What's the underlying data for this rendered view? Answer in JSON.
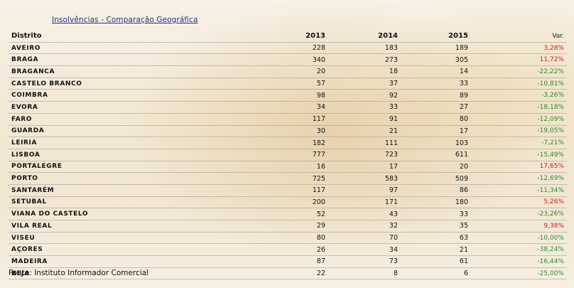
{
  "title": "Insolvências - Comparação Geográfica",
  "headers": {
    "district": "Distrito",
    "y2013": "2013",
    "y2014": "2014",
    "y2015": "2015",
    "var": "Var."
  },
  "rows": [
    {
      "district": "AVEIRO",
      "y2013": "228",
      "y2014": "183",
      "y2015": "189",
      "var": "3,28%",
      "trend": "pos"
    },
    {
      "district": "BRAGA",
      "y2013": "340",
      "y2014": "273",
      "y2015": "305",
      "var": "11,72%",
      "trend": "pos"
    },
    {
      "district": "BRAGANCA",
      "y2013": "20",
      "y2014": "18",
      "y2015": "14",
      "var": "-22,22%",
      "trend": "neg"
    },
    {
      "district": "CASTELO BRANCO",
      "y2013": "57",
      "y2014": "37",
      "y2015": "33",
      "var": "-10,81%",
      "trend": "neg"
    },
    {
      "district": "COIMBRA",
      "y2013": "98",
      "y2014": "92",
      "y2015": "89",
      "var": "-3,26%",
      "trend": "neg"
    },
    {
      "district": "EVORA",
      "y2013": "34",
      "y2014": "33",
      "y2015": "27",
      "var": "-18,18%",
      "trend": "neg"
    },
    {
      "district": "FARO",
      "y2013": "117",
      "y2014": "91",
      "y2015": "80",
      "var": "-12,09%",
      "trend": "neg"
    },
    {
      "district": "GUARDA",
      "y2013": "30",
      "y2014": "21",
      "y2015": "17",
      "var": "-19,05%",
      "trend": "neg"
    },
    {
      "district": "LEIRIA",
      "y2013": "182",
      "y2014": "111",
      "y2015": "103",
      "var": "-7,21%",
      "trend": "neg"
    },
    {
      "district": "LISBOA",
      "y2013": "777",
      "y2014": "723",
      "y2015": "611",
      "var": "-15,49%",
      "trend": "neg"
    },
    {
      "district": "PORTALEGRE",
      "y2013": "16",
      "y2014": "17",
      "y2015": "20",
      "var": "17,65%",
      "trend": "pos"
    },
    {
      "district": "PORTO",
      "y2013": "725",
      "y2014": "583",
      "y2015": "509",
      "var": "-12,69%",
      "trend": "neg"
    },
    {
      "district": "SANTARÉM",
      "y2013": "117",
      "y2014": "97",
      "y2015": "86",
      "var": "-11,34%",
      "trend": "neg"
    },
    {
      "district": "SETUBAL",
      "y2013": "200",
      "y2014": "171",
      "y2015": "180",
      "var": "5,26%",
      "trend": "pos"
    },
    {
      "district": "VIANA DO CASTELO",
      "y2013": "52",
      "y2014": "43",
      "y2015": "33",
      "var": "-23,26%",
      "trend": "neg"
    },
    {
      "district": "VILA REAL",
      "y2013": "29",
      "y2014": "32",
      "y2015": "35",
      "var": "9,38%",
      "trend": "pos"
    },
    {
      "district": "VISEU",
      "y2013": "80",
      "y2014": "70",
      "y2015": "63",
      "var": "-10,00%",
      "trend": "neg"
    },
    {
      "district": "AÇORES",
      "y2013": "26",
      "y2014": "34",
      "y2015": "21",
      "var": "-38,24%",
      "trend": "neg"
    },
    {
      "district": "MADEIRA",
      "y2013": "87",
      "y2014": "73",
      "y2015": "61",
      "var": "-16,44%",
      "trend": "neg"
    },
    {
      "district": "BEJA",
      "y2013": "22",
      "y2014": "8",
      "y2015": "6",
      "var": "-25,00%",
      "trend": "neg"
    }
  ],
  "colors": {
    "positive": "#d01c1c",
    "negative": "#2e8b2e",
    "title": "#1f2f8a"
  },
  "source": "Fonte: Instituto Informador Comercial"
}
